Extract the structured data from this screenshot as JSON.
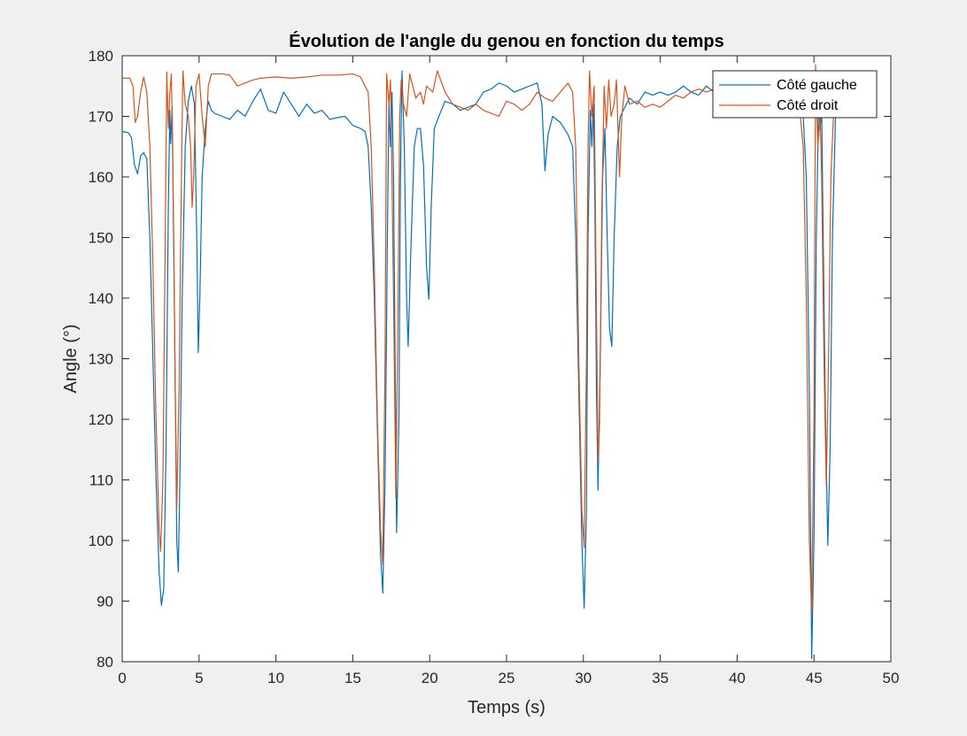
{
  "chart_data": {
    "type": "line",
    "title": "Évolution de l'angle du genou en fonction du temps",
    "xlabel": "Temps (s)",
    "ylabel": "Angle (°)",
    "xlim": [
      0,
      50
    ],
    "ylim": [
      80,
      180
    ],
    "xticks": [
      0,
      5,
      10,
      15,
      20,
      25,
      30,
      35,
      40,
      45,
      50
    ],
    "yticks": [
      80,
      90,
      100,
      110,
      120,
      130,
      140,
      150,
      160,
      170,
      180
    ],
    "grid": false,
    "legend_location": "top-right",
    "series": [
      {
        "name": "Côté gauche",
        "color": "#0072BD",
        "points": [
          [
            0,
            167.5
          ],
          [
            0.4,
            167.3
          ],
          [
            0.6,
            166.5
          ],
          [
            0.8,
            162
          ],
          [
            1.0,
            160.5
          ],
          [
            1.2,
            163.5
          ],
          [
            1.4,
            164
          ],
          [
            1.6,
            163
          ],
          [
            1.8,
            150
          ],
          [
            2.0,
            130
          ],
          [
            2.2,
            110
          ],
          [
            2.4,
            95
          ],
          [
            2.55,
            89.3
          ],
          [
            2.7,
            92
          ],
          [
            2.85,
            115
          ],
          [
            3.0,
            155
          ],
          [
            3.1,
            171
          ],
          [
            3.15,
            165.5
          ],
          [
            3.25,
            171.5
          ],
          [
            3.35,
            150
          ],
          [
            3.45,
            125
          ],
          [
            3.55,
            100
          ],
          [
            3.65,
            94.8
          ],
          [
            3.75,
            110
          ],
          [
            3.9,
            140
          ],
          [
            4.1,
            165
          ],
          [
            4.3,
            172.5
          ],
          [
            4.5,
            175
          ],
          [
            4.7,
            172
          ],
          [
            4.85,
            150
          ],
          [
            4.95,
            131
          ],
          [
            5.05,
            140
          ],
          [
            5.2,
            160
          ],
          [
            5.4,
            168
          ],
          [
            5.6,
            172.5
          ],
          [
            5.8,
            171
          ],
          [
            6.0,
            170.5
          ],
          [
            6.5,
            170
          ],
          [
            7.0,
            169.5
          ],
          [
            7.5,
            171
          ],
          [
            8.0,
            170
          ],
          [
            8.5,
            172.5
          ],
          [
            9.0,
            174.5
          ],
          [
            9.5,
            171
          ],
          [
            10,
            170.5
          ],
          [
            10.5,
            174
          ],
          [
            11,
            172
          ],
          [
            11.5,
            170
          ],
          [
            12,
            172
          ],
          [
            12.5,
            170.5
          ],
          [
            13,
            171
          ],
          [
            13.5,
            169.5
          ],
          [
            14,
            169.8
          ],
          [
            14.5,
            170
          ],
          [
            15,
            168.5
          ],
          [
            15.5,
            168
          ],
          [
            15.8,
            167.5
          ],
          [
            16.0,
            165
          ],
          [
            16.2,
            155
          ],
          [
            16.4,
            140
          ],
          [
            16.6,
            118
          ],
          [
            16.8,
            98
          ],
          [
            16.95,
            91.3
          ],
          [
            17.1,
            110
          ],
          [
            17.25,
            150
          ],
          [
            17.35,
            172
          ],
          [
            17.45,
            165
          ],
          [
            17.55,
            174
          ],
          [
            17.65,
            160
          ],
          [
            17.75,
            130
          ],
          [
            17.85,
            101.3
          ],
          [
            18.0,
            120
          ],
          [
            18.1,
            160
          ],
          [
            18.2,
            177.5
          ],
          [
            18.35,
            165
          ],
          [
            18.5,
            140
          ],
          [
            18.6,
            132
          ],
          [
            18.8,
            150
          ],
          [
            19.0,
            165
          ],
          [
            19.2,
            168
          ],
          [
            19.4,
            168
          ],
          [
            19.6,
            162
          ],
          [
            19.8,
            145
          ],
          [
            19.95,
            139.8
          ],
          [
            20.1,
            155
          ],
          [
            20.3,
            168
          ],
          [
            20.6,
            170
          ],
          [
            21,
            172.5
          ],
          [
            21.5,
            172
          ],
          [
            22,
            171
          ],
          [
            22.5,
            171.5
          ],
          [
            23,
            172
          ],
          [
            23.5,
            174
          ],
          [
            24,
            174.5
          ],
          [
            24.5,
            175.5
          ],
          [
            25,
            175
          ],
          [
            25.5,
            174
          ],
          [
            26,
            174.5
          ],
          [
            26.5,
            175
          ],
          [
            27,
            175.5
          ],
          [
            27.3,
            172
          ],
          [
            27.5,
            161
          ],
          [
            27.7,
            167
          ],
          [
            28,
            170
          ],
          [
            28.5,
            169
          ],
          [
            29,
            167
          ],
          [
            29.3,
            165
          ],
          [
            29.5,
            150
          ],
          [
            29.7,
            125
          ],
          [
            29.9,
            100
          ],
          [
            30.05,
            88.8
          ],
          [
            30.2,
            105
          ],
          [
            30.3,
            150
          ],
          [
            30.45,
            171
          ],
          [
            30.55,
            165
          ],
          [
            30.65,
            172
          ],
          [
            30.75,
            155
          ],
          [
            30.85,
            125
          ],
          [
            30.95,
            108.3
          ],
          [
            31.1,
            130
          ],
          [
            31.25,
            160
          ],
          [
            31.4,
            168
          ],
          [
            31.55,
            150
          ],
          [
            31.7,
            135
          ],
          [
            31.85,
            132
          ],
          [
            32.0,
            150
          ],
          [
            32.2,
            165
          ],
          [
            32.4,
            170
          ],
          [
            32.6,
            171
          ],
          [
            33,
            173
          ],
          [
            33.5,
            172
          ],
          [
            34,
            174
          ],
          [
            34.5,
            173.5
          ],
          [
            35,
            174
          ],
          [
            35.5,
            173.5
          ],
          [
            36,
            174
          ],
          [
            36.5,
            175
          ],
          [
            37,
            174
          ],
          [
            37.5,
            173.5
          ],
          [
            38,
            175
          ],
          [
            38.5,
            174
          ],
          [
            39,
            173
          ],
          [
            39.5,
            174
          ],
          [
            40,
            173
          ],
          [
            40.5,
            172
          ],
          [
            41,
            173
          ],
          [
            41.5,
            172.5
          ],
          [
            42,
            172
          ],
          [
            42.5,
            171.5
          ],
          [
            43,
            171
          ],
          [
            43.5,
            172
          ],
          [
            44,
            171
          ],
          [
            44.3,
            170
          ],
          [
            44.5,
            160
          ],
          [
            44.7,
            125
          ],
          [
            44.85,
            80.5
          ],
          [
            45.0,
            100
          ],
          [
            45.15,
            150
          ],
          [
            45.3,
            172
          ],
          [
            45.4,
            168
          ],
          [
            45.5,
            171
          ],
          [
            45.6,
            150
          ],
          [
            45.75,
            120
          ],
          [
            45.9,
            99.2
          ],
          [
            46.05,
            115
          ],
          [
            46.2,
            150
          ],
          [
            46.4,
            170
          ],
          [
            46.8,
            171
          ],
          [
            47.2,
            171.5
          ],
          [
            47.6,
            171
          ],
          [
            48.0,
            171
          ],
          [
            48.4,
            170.5
          ],
          [
            48.7,
            170.5
          ]
        ]
      },
      {
        "name": "Côté droit",
        "color": "#D95319",
        "points": [
          [
            0,
            176.3
          ],
          [
            0.5,
            176.3
          ],
          [
            0.7,
            175
          ],
          [
            0.85,
            169
          ],
          [
            1.0,
            170
          ],
          [
            1.2,
            174
          ],
          [
            1.4,
            176.5
          ],
          [
            1.6,
            174
          ],
          [
            1.8,
            165
          ],
          [
            2.0,
            145
          ],
          [
            2.2,
            120
          ],
          [
            2.4,
            102
          ],
          [
            2.5,
            98.2
          ],
          [
            2.65,
            110
          ],
          [
            2.8,
            150
          ],
          [
            2.9,
            177.3
          ],
          [
            3.0,
            168
          ],
          [
            3.1,
            174
          ],
          [
            3.2,
            177
          ],
          [
            3.3,
            160
          ],
          [
            3.45,
            125
          ],
          [
            3.55,
            105.2
          ],
          [
            3.7,
            125
          ],
          [
            3.85,
            160
          ],
          [
            3.95,
            177.5
          ],
          [
            4.1,
            172
          ],
          [
            4.3,
            170
          ],
          [
            4.45,
            165
          ],
          [
            4.55,
            155
          ],
          [
            4.65,
            160
          ],
          [
            4.8,
            175
          ],
          [
            5.0,
            177
          ],
          [
            5.2,
            170
          ],
          [
            5.4,
            165
          ],
          [
            5.6,
            175
          ],
          [
            5.8,
            177
          ],
          [
            6.5,
            177
          ],
          [
            7.0,
            176.8
          ],
          [
            7.5,
            175
          ],
          [
            8.0,
            175.5
          ],
          [
            8.5,
            176
          ],
          [
            9.0,
            176.3
          ],
          [
            10,
            176.5
          ],
          [
            11,
            176.3
          ],
          [
            12,
            176.5
          ],
          [
            13,
            176.8
          ],
          [
            14,
            176.8
          ],
          [
            15,
            177
          ],
          [
            15.5,
            176.5
          ],
          [
            16.0,
            174
          ],
          [
            16.2,
            165
          ],
          [
            16.4,
            145
          ],
          [
            16.6,
            120
          ],
          [
            16.8,
            102
          ],
          [
            16.95,
            96
          ],
          [
            17.1,
            130
          ],
          [
            17.2,
            177
          ],
          [
            17.35,
            172
          ],
          [
            17.45,
            176
          ],
          [
            17.55,
            160
          ],
          [
            17.7,
            130
          ],
          [
            17.8,
            107
          ],
          [
            17.95,
            140
          ],
          [
            18.05,
            170
          ],
          [
            18.15,
            176
          ],
          [
            18.3,
            172
          ],
          [
            18.5,
            170
          ],
          [
            18.7,
            177
          ],
          [
            18.9,
            175
          ],
          [
            19.1,
            173
          ],
          [
            19.4,
            174
          ],
          [
            19.6,
            172
          ],
          [
            19.8,
            175
          ],
          [
            20.2,
            174
          ],
          [
            20.5,
            177.5
          ],
          [
            21,
            174
          ],
          [
            21.5,
            172
          ],
          [
            22,
            171.5
          ],
          [
            22.5,
            171
          ],
          [
            23,
            172
          ],
          [
            23.5,
            171
          ],
          [
            24,
            170.5
          ],
          [
            24.5,
            170
          ],
          [
            25,
            172.5
          ],
          [
            25.5,
            172
          ],
          [
            26,
            171
          ],
          [
            26.5,
            172
          ],
          [
            27,
            174
          ],
          [
            27.5,
            173
          ],
          [
            28,
            172.5
          ],
          [
            28.5,
            174
          ],
          [
            29,
            175.5
          ],
          [
            29.3,
            174
          ],
          [
            29.5,
            165
          ],
          [
            29.7,
            130
          ],
          [
            29.9,
            105
          ],
          [
            30.05,
            98.8
          ],
          [
            30.2,
            130
          ],
          [
            30.3,
            165
          ],
          [
            30.4,
            177.5
          ],
          [
            30.55,
            170
          ],
          [
            30.7,
            175
          ],
          [
            30.8,
            150
          ],
          [
            30.95,
            113
          ],
          [
            31.05,
            119
          ],
          [
            31.2,
            155
          ],
          [
            31.35,
            175
          ],
          [
            31.5,
            168
          ],
          [
            31.65,
            176
          ],
          [
            31.8,
            170
          ],
          [
            32.0,
            172
          ],
          [
            32.15,
            176
          ],
          [
            32.35,
            160
          ],
          [
            32.5,
            170
          ],
          [
            32.7,
            175
          ],
          [
            33,
            172
          ],
          [
            33.5,
            172.5
          ],
          [
            34,
            171.5
          ],
          [
            34.5,
            172
          ],
          [
            35,
            171.5
          ],
          [
            35.5,
            172.5
          ],
          [
            36,
            173.5
          ],
          [
            36.5,
            173
          ],
          [
            37,
            174
          ],
          [
            37.5,
            174.5
          ],
          [
            38,
            174
          ],
          [
            38.5,
            174.5
          ],
          [
            39,
            173.5
          ],
          [
            39.5,
            174
          ],
          [
            40,
            174.2
          ],
          [
            41,
            174.5
          ],
          [
            42,
            174.5
          ],
          [
            43,
            174.5
          ],
          [
            43.5,
            174
          ],
          [
            44.0,
            173
          ],
          [
            44.3,
            165
          ],
          [
            44.5,
            140
          ],
          [
            44.7,
            100
          ],
          [
            44.85,
            88
          ],
          [
            45.0,
            120
          ],
          [
            45.1,
            178.5
          ],
          [
            45.25,
            165
          ],
          [
            45.4,
            170
          ],
          [
            45.5,
            160
          ],
          [
            45.65,
            130
          ],
          [
            45.8,
            109
          ],
          [
            45.95,
            130
          ],
          [
            46.1,
            160
          ],
          [
            46.3,
            172
          ],
          [
            46.6,
            173
          ],
          [
            47.0,
            172.5
          ]
        ]
      }
    ]
  }
}
